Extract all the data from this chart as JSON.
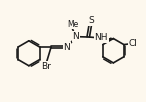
{
  "bg_color": "#fdf8ee",
  "bond_color": "#1a1a1a",
  "atom_color": "#1a1a1a",
  "bond_lw": 1.2,
  "figsize": [
    1.46,
    1.02
  ],
  "dpi": 100,
  "xlim": [
    0.0,
    9.5
  ],
  "ylim": [
    0.5,
    6.8
  ]
}
